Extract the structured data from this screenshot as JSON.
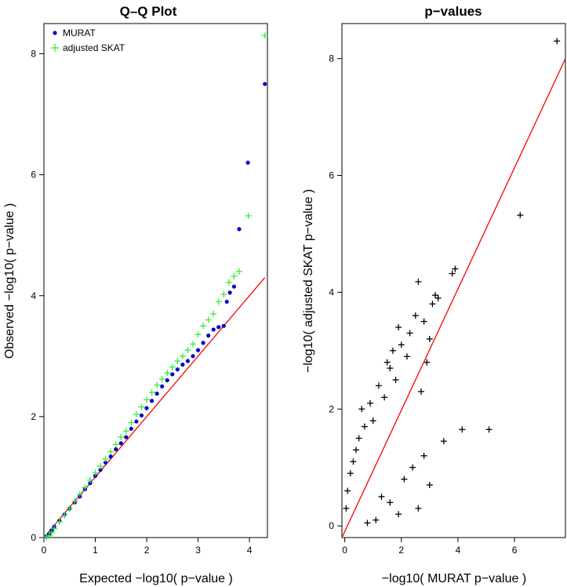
{
  "chart_data": [
    {
      "type": "scatter",
      "title": "Q–Q Plot",
      "xlabel": "Expected −log10( p−value )",
      "ylabel": "Observed −log10( p−value )",
      "xlim": [
        0,
        4.35
      ],
      "ylim": [
        0,
        8.5
      ],
      "xticks": [
        0,
        1,
        2,
        3,
        4
      ],
      "yticks": [
        0,
        2,
        4,
        6,
        8
      ],
      "grid": false,
      "legend": "top-left",
      "reference_line": {
        "color": "#ff0000",
        "from": [
          0,
          0
        ],
        "to": [
          4.3,
          4.3
        ]
      },
      "series": [
        {
          "name": "MURAT",
          "marker": "dot",
          "color": "#0000cc",
          "points": [
            [
              0.05,
              0.02
            ],
            [
              0.1,
              0.06
            ],
            [
              0.15,
              0.12
            ],
            [
              0.2,
              0.18
            ],
            [
              0.3,
              0.28
            ],
            [
              0.4,
              0.38
            ],
            [
              0.5,
              0.48
            ],
            [
              0.6,
              0.58
            ],
            [
              0.7,
              0.68
            ],
            [
              0.8,
              0.8
            ],
            [
              0.9,
              0.9
            ],
            [
              1.0,
              1.02
            ],
            [
              1.1,
              1.12
            ],
            [
              1.2,
              1.24
            ],
            [
              1.3,
              1.34
            ],
            [
              1.4,
              1.46
            ],
            [
              1.5,
              1.56
            ],
            [
              1.6,
              1.66
            ],
            [
              1.7,
              1.8
            ],
            [
              1.8,
              1.92
            ],
            [
              1.9,
              2.02
            ],
            [
              2.0,
              2.14
            ],
            [
              2.1,
              2.26
            ],
            [
              2.2,
              2.38
            ],
            [
              2.3,
              2.5
            ],
            [
              2.4,
              2.6
            ],
            [
              2.5,
              2.7
            ],
            [
              2.6,
              2.78
            ],
            [
              2.7,
              2.86
            ],
            [
              2.8,
              2.92
            ],
            [
              2.9,
              3.0
            ],
            [
              3.0,
              3.1
            ],
            [
              3.1,
              3.22
            ],
            [
              3.2,
              3.34
            ],
            [
              3.3,
              3.44
            ],
            [
              3.4,
              3.48
            ],
            [
              3.5,
              3.5
            ],
            [
              3.56,
              3.9
            ],
            [
              3.62,
              4.05
            ],
            [
              3.7,
              4.15
            ],
            [
              3.8,
              5.1
            ],
            [
              3.97,
              6.2
            ],
            [
              4.3,
              7.5
            ]
          ]
        },
        {
          "name": "adjusted SKAT",
          "marker": "plus",
          "color": "#33ee33",
          "points": [
            [
              0.05,
              0.01
            ],
            [
              0.1,
              0.03
            ],
            [
              0.15,
              0.08
            ],
            [
              0.2,
              0.15
            ],
            [
              0.3,
              0.26
            ],
            [
              0.4,
              0.37
            ],
            [
              0.5,
              0.48
            ],
            [
              0.6,
              0.6
            ],
            [
              0.7,
              0.72
            ],
            [
              0.8,
              0.83
            ],
            [
              0.9,
              0.95
            ],
            [
              1.0,
              1.07
            ],
            [
              1.1,
              1.18
            ],
            [
              1.2,
              1.3
            ],
            [
              1.3,
              1.42
            ],
            [
              1.4,
              1.54
            ],
            [
              1.5,
              1.66
            ],
            [
              1.6,
              1.76
            ],
            [
              1.7,
              1.9
            ],
            [
              1.8,
              2.04
            ],
            [
              1.9,
              2.16
            ],
            [
              2.0,
              2.28
            ],
            [
              2.1,
              2.4
            ],
            [
              2.2,
              2.52
            ],
            [
              2.3,
              2.62
            ],
            [
              2.4,
              2.72
            ],
            [
              2.5,
              2.82
            ],
            [
              2.6,
              2.92
            ],
            [
              2.7,
              3.0
            ],
            [
              2.8,
              3.1
            ],
            [
              2.9,
              3.2
            ],
            [
              3.0,
              3.36
            ],
            [
              3.1,
              3.5
            ],
            [
              3.2,
              3.6
            ],
            [
              3.3,
              3.7
            ],
            [
              3.4,
              3.9
            ],
            [
              3.5,
              4.02
            ],
            [
              3.6,
              4.22
            ],
            [
              3.7,
              4.32
            ],
            [
              3.8,
              4.4
            ],
            [
              3.98,
              5.32
            ],
            [
              4.3,
              8.3
            ]
          ]
        }
      ]
    },
    {
      "type": "scatter",
      "title": "p−values",
      "xlabel": "−log10( MURAT p−value )",
      "ylabel": "−log10( adjusted SKAT p−value )",
      "xlim": [
        -0.1,
        7.8
      ],
      "ylim": [
        -0.2,
        8.6
      ],
      "xticks": [
        0,
        2,
        4,
        6
      ],
      "yticks": [
        0,
        2,
        4,
        6,
        8
      ],
      "grid": false,
      "reference_line": {
        "color": "#ff0000",
        "from": [
          -0.5,
          -0.5
        ],
        "to": [
          8.0,
          8.0
        ]
      },
      "series": [
        {
          "marker": "plus",
          "color": "#000000",
          "points": [
            [
              7.5,
              8.3
            ],
            [
              6.2,
              5.32
            ],
            [
              5.1,
              1.65
            ],
            [
              4.15,
              1.65
            ],
            [
              3.9,
              4.4
            ],
            [
              3.8,
              4.32
            ],
            [
              3.5,
              1.45
            ],
            [
              3.3,
              3.9
            ],
            [
              3.2,
              3.95
            ],
            [
              3.1,
              3.8
            ],
            [
              2.6,
              4.18
            ],
            [
              3.0,
              3.2
            ],
            [
              2.9,
              2.8
            ],
            [
              2.8,
              3.5
            ],
            [
              2.7,
              2.3
            ],
            [
              2.5,
              3.6
            ],
            [
              2.3,
              3.3
            ],
            [
              2.2,
              2.9
            ],
            [
              2.0,
              3.1
            ],
            [
              1.9,
              3.4
            ],
            [
              2.1,
              0.8
            ],
            [
              2.4,
              1.0
            ],
            [
              2.6,
              0.3
            ],
            [
              3.0,
              0.7
            ],
            [
              2.8,
              1.2
            ],
            [
              1.8,
              2.5
            ],
            [
              1.7,
              3.0
            ],
            [
              1.6,
              2.7
            ],
            [
              1.5,
              2.8
            ],
            [
              1.4,
              2.2
            ],
            [
              1.2,
              2.4
            ],
            [
              1.0,
              1.8
            ],
            [
              0.9,
              2.1
            ],
            [
              0.7,
              1.7
            ],
            [
              0.6,
              2.0
            ],
            [
              0.5,
              1.5
            ],
            [
              0.4,
              1.3
            ],
            [
              0.3,
              1.1
            ],
            [
              0.2,
              0.9
            ],
            [
              0.1,
              0.6
            ],
            [
              0.05,
              0.3
            ],
            [
              1.3,
              0.5
            ],
            [
              1.6,
              0.4
            ],
            [
              1.9,
              0.2
            ],
            [
              1.1,
              0.1
            ],
            [
              0.8,
              0.05
            ]
          ]
        }
      ]
    }
  ]
}
